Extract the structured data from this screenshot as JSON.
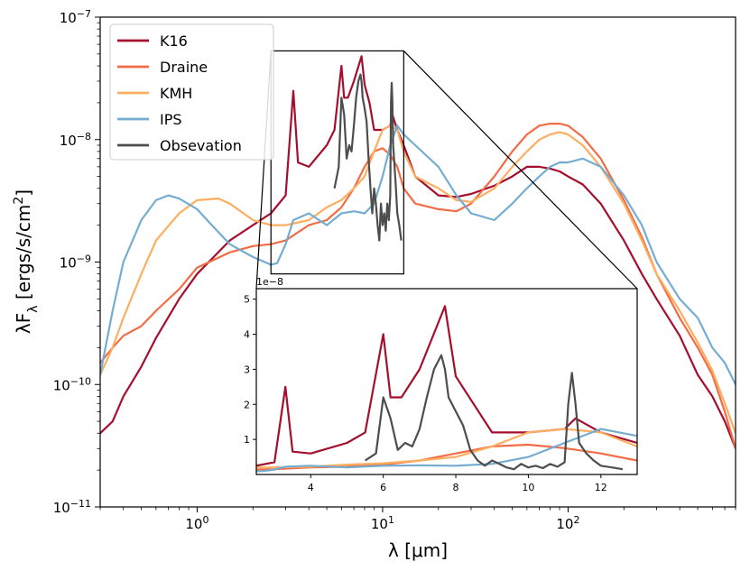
{
  "chart_data": {
    "type": "line",
    "xscale": "log",
    "yscale": "log",
    "xlim": [
      0.3,
      800
    ],
    "ylim": [
      1e-11,
      1e-07
    ],
    "xlabel": "λ [μm]",
    "ylabel": "λF_λ [ergs/s/cm²]",
    "x_ticks": [
      {
        "value": 1,
        "base": "10",
        "exp": "0"
      },
      {
        "value": 10,
        "base": "10",
        "exp": "1"
      },
      {
        "value": 100,
        "base": "10",
        "exp": "2"
      }
    ],
    "y_ticks": [
      {
        "value": 1e-11,
        "base": "10",
        "exp": "−11"
      },
      {
        "value": 1e-10,
        "base": "10",
        "exp": "−10"
      },
      {
        "value": 1e-09,
        "base": "10",
        "exp": "−9"
      },
      {
        "value": 1e-08,
        "base": "10",
        "exp": "−8"
      },
      {
        "value": 1e-07,
        "base": "10",
        "exp": "−7"
      }
    ],
    "legend_position": "top-left",
    "series": [
      {
        "name": "K16",
        "color": "#a50f2d",
        "x": [
          0.3,
          0.35,
          0.4,
          0.5,
          0.6,
          0.8,
          1.0,
          1.5,
          2.0,
          2.5,
          3.0,
          3.3,
          3.5,
          4.0,
          5.0,
          5.5,
          6.0,
          6.2,
          6.5,
          7.0,
          7.7,
          8.0,
          8.5,
          9.0,
          10.0,
          11.0,
          11.3,
          12.0,
          13.0,
          15.0,
          20.0,
          25.0,
          30.0,
          40.0,
          50.0,
          60.0,
          70.0,
          80.0,
          90.0,
          100.0,
          120.0,
          150.0,
          200.0,
          250.0,
          300.0,
          400.0,
          500.0,
          600.0,
          700.0,
          800.0
        ],
        "y": [
          4e-11,
          5e-11,
          8e-11,
          1.4e-10,
          2.4e-10,
          5e-10,
          8e-10,
          1.5e-09,
          2e-09,
          2.5e-09,
          3.5e-09,
          2.5e-08,
          6.5e-09,
          6e-09,
          9e-09,
          1.2e-08,
          4e-08,
          2.2e-08,
          2.2e-08,
          3e-08,
          4.8e-08,
          2.8e-08,
          2e-08,
          1.2e-08,
          1.2e-08,
          1.3e-08,
          1.6e-08,
          1.2e-08,
          9e-09,
          5e-09,
          3.5e-09,
          3.4e-09,
          3.6e-09,
          4.2e-09,
          5e-09,
          6e-09,
          6e-09,
          5.8e-09,
          5.5e-09,
          5e-09,
          4.3e-09,
          3e-09,
          1.5e-09,
          8e-10,
          5e-10,
          2.5e-10,
          1.2e-10,
          8e-11,
          5e-11,
          3e-11
        ]
      },
      {
        "name": "Draine",
        "color": "#f26c45",
        "x": [
          0.3,
          0.35,
          0.4,
          0.5,
          0.6,
          0.8,
          1.0,
          1.5,
          2.0,
          2.5,
          3.0,
          4.0,
          5.0,
          6.0,
          7.0,
          8.0,
          9.0,
          10.0,
          11.0,
          12.0,
          13.0,
          15.0,
          20.0,
          25.0,
          30.0,
          40.0,
          50.0,
          60.0,
          70.0,
          80.0,
          90.0,
          100.0,
          120.0,
          150.0,
          200.0,
          250.0,
          300.0,
          400.0,
          500.0,
          600.0,
          700.0,
          800.0
        ],
        "y": [
          1.5e-10,
          2e-10,
          2.5e-10,
          3e-10,
          4e-10,
          6e-10,
          9e-10,
          1.2e-09,
          1.35e-09,
          1.4e-09,
          1.5e-09,
          2e-09,
          2.2e-09,
          2.8e-09,
          4e-09,
          6e-09,
          8e-09,
          8.5e-09,
          7.5e-09,
          6e-09,
          4e-09,
          3e-09,
          2.7e-09,
          2.6e-09,
          3e-09,
          5e-09,
          8e-09,
          1.1e-08,
          1.3e-08,
          1.35e-08,
          1.35e-08,
          1.3e-08,
          1.05e-08,
          7e-09,
          3.2e-09,
          1.6e-09,
          8e-10,
          3.5e-10,
          2e-10,
          1.2e-10,
          6e-11,
          3e-11
        ]
      },
      {
        "name": "KMH",
        "color": "#fdae61",
        "x": [
          0.3,
          0.35,
          0.4,
          0.5,
          0.6,
          0.8,
          1.0,
          1.3,
          1.5,
          2.0,
          2.5,
          3.0,
          4.0,
          5.0,
          6.0,
          7.0,
          8.0,
          9.0,
          10.0,
          11.0,
          12.0,
          13.0,
          15.0,
          20.0,
          25.0,
          30.0,
          40.0,
          50.0,
          60.0,
          70.0,
          80.0,
          90.0,
          100.0,
          120.0,
          150.0,
          200.0,
          250.0,
          300.0,
          400.0,
          500.0,
          600.0,
          700.0,
          800.0
        ],
        "y": [
          1.2e-10,
          2e-10,
          3.5e-10,
          8e-10,
          1.5e-09,
          2.5e-09,
          3.2e-09,
          3.3e-09,
          3e-09,
          2.2e-09,
          2e-09,
          2e-09,
          2.2e-09,
          2.8e-09,
          3.2e-09,
          4e-09,
          5e-09,
          8e-09,
          1.2e-08,
          1.3e-08,
          1.2e-08,
          8e-09,
          5e-09,
          4e-09,
          3.2e-09,
          3.1e-09,
          4e-09,
          6e-09,
          8e-09,
          1e-08,
          1.1e-08,
          1.15e-08,
          1.1e-08,
          9e-09,
          6e-09,
          3e-09,
          1.5e-09,
          8e-10,
          4e-10,
          2.2e-10,
          1.3e-10,
          7e-11,
          4e-11
        ]
      },
      {
        "name": "IPS",
        "color": "#74add1",
        "x": [
          0.3,
          0.35,
          0.4,
          0.5,
          0.6,
          0.7,
          0.8,
          1.0,
          1.2,
          1.5,
          2.0,
          2.5,
          2.7,
          3.0,
          3.3,
          4.0,
          5.0,
          6.0,
          7.0,
          8.0,
          9.0,
          10.0,
          11.0,
          12.0,
          13.0,
          15.0,
          20.0,
          25.0,
          30.0,
          40.0,
          50.0,
          60.0,
          70.0,
          80.0,
          90.0,
          100.0,
          120.0,
          150.0,
          200.0,
          250.0,
          300.0,
          400.0,
          500.0,
          600.0,
          700.0,
          800.0
        ],
        "y": [
          1.2e-10,
          4e-10,
          1e-09,
          2.2e-09,
          3.2e-09,
          3.5e-09,
          3.3e-09,
          2.7e-09,
          2e-09,
          1.4e-09,
          1.1e-09,
          9.5e-10,
          9.8e-10,
          1.4e-09,
          2.2e-09,
          2.5e-09,
          2e-09,
          2.5e-09,
          2.6e-09,
          2.5e-09,
          3e-09,
          5e-09,
          9e-09,
          1.3e-08,
          1.1e-08,
          9e-09,
          6e-09,
          3.5e-09,
          2.5e-09,
          2.2e-09,
          3e-09,
          4e-09,
          5e-09,
          6e-09,
          6.5e-09,
          6.5e-09,
          7e-09,
          6e-09,
          3.5e-09,
          2e-09,
          1e-09,
          5e-10,
          3.5e-10,
          2e-10,
          1.5e-10,
          1e-10
        ]
      },
      {
        "name": "Obsevation",
        "color": "#4d4d4d",
        "x": [
          5.5,
          5.8,
          6.0,
          6.2,
          6.4,
          6.6,
          6.8,
          7.0,
          7.2,
          7.4,
          7.6,
          7.7,
          7.8,
          8.0,
          8.2,
          8.4,
          8.6,
          8.8,
          9.0,
          9.2,
          9.4,
          9.6,
          9.8,
          10.0,
          10.2,
          10.4,
          10.6,
          10.8,
          11.0,
          11.1,
          11.2,
          11.3,
          11.4,
          11.6,
          11.8,
          12.0,
          12.3,
          12.6
        ],
        "y": [
          4e-09,
          6e-09,
          2.2e-08,
          1.6e-08,
          7e-09,
          9e-09,
          8e-09,
          1.3e-08,
          2.2e-08,
          3e-08,
          3.4e-08,
          3e-08,
          2.2e-08,
          1.8e-08,
          1.4e-08,
          7e-09,
          4e-09,
          2.5e-09,
          4e-09,
          3e-09,
          2e-09,
          1.5e-09,
          3e-09,
          2e-09,
          2.5e-09,
          1.8e-09,
          3e-09,
          2.2e-09,
          3.5e-09,
          2e-08,
          2.9e-08,
          2e-08,
          9e-09,
          6e-09,
          4e-09,
          2.5e-09,
          2e-09,
          1.5e-09
        ]
      }
    ],
    "inset": {
      "xlim": [
        2.5,
        13
      ],
      "ylim": [
        0,
        5.3
      ],
      "y_multiplier": "1e−8",
      "x_ticks": [
        "4",
        "6",
        "8",
        "10",
        "12"
      ],
      "y_ticks": [
        "1",
        "2",
        "3",
        "4",
        "5"
      ],
      "zoom_window_x": [
        2.5,
        13
      ],
      "zoom_window_y": [
        8e-10,
        5.3e-08
      ]
    }
  }
}
